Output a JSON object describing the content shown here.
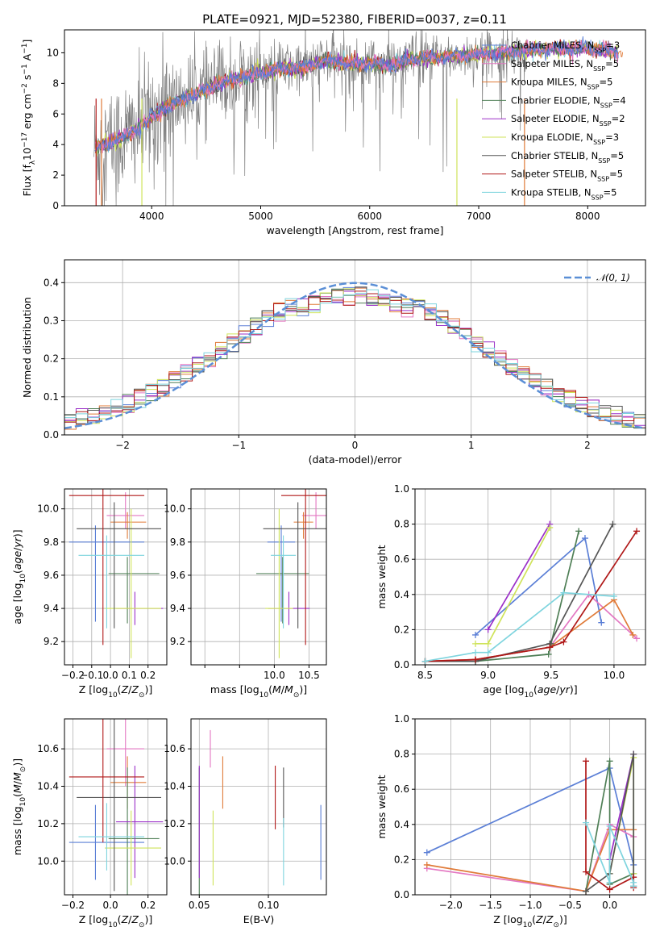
{
  "figure": {
    "title": "PLATE=0921, MJD=52380, FIBERID=0037, z=0.11",
    "colors": {
      "Chabrier MILES": "#5b7fd6",
      "Salpeter MILES": "#e377c2",
      "Kroupa MILES": "#e07b39",
      "Chabrier ELODIE": "#4f7f56",
      "Salpeter ELODIE": "#9b30c8",
      "Kroupa ELODIE": "#cfe35a",
      "Chabrier STELIB": "#555555",
      "Salpeter STELIB": "#b01818",
      "Kroupa STELIB": "#7ed4de",
      "data": "#808080",
      "gaussian": "#5b8fd6"
    }
  },
  "chart_data": [
    {
      "id": "spectrum",
      "type": "line",
      "xlabel": "wavelength [Angstrom, rest frame]",
      "ylabel": "Flux [fλ10⁻¹⁷ erg cm⁻² s⁻¹ A⁻¹]",
      "xlim": [
        3200,
        8530
      ],
      "ylim": [
        0,
        11.5
      ],
      "xticks": [
        4000,
        5000,
        6000,
        7000,
        8000
      ],
      "yticks": [
        0,
        2,
        4,
        6,
        8,
        10
      ],
      "legend_position": "top-right",
      "continuum_x": [
        3500,
        3700,
        3900,
        4100,
        4300,
        4500,
        4700,
        5000,
        5200,
        5400,
        5600,
        5800,
        6000,
        6200,
        6400,
        6600,
        6800,
        7000,
        7200,
        7400,
        7600,
        7800,
        8000,
        8200,
        8300
      ],
      "continuum_y": [
        3.8,
        4.3,
        5.2,
        6.3,
        7.0,
        7.6,
        8.2,
        8.7,
        9.0,
        9.0,
        9.5,
        9.3,
        9.3,
        9.2,
        9.6,
        9.7,
        9.8,
        9.9,
        10.0,
        10.1,
        10.2,
        10.3,
        10.3,
        10.1,
        10.0
      ],
      "series": [
        {
          "name": "Chabrier MILES, N_SSP=3",
          "n": "3"
        },
        {
          "name": "Salpeter MILES, N_SSP=5",
          "n": "5"
        },
        {
          "name": "Kroupa MILES, N_SSP=5",
          "n": "5"
        },
        {
          "name": "Chabrier ELODIE, N_SSP=4",
          "n": "4"
        },
        {
          "name": "Salpeter ELODIE, N_SSP=2",
          "n": "2"
        },
        {
          "name": "Kroupa ELODIE, N_SSP=3",
          "n": "3"
        },
        {
          "name": "Chabrier STELIB, N_SSP=5",
          "n": "5"
        },
        {
          "name": "Salpeter STELIB, N_SSP=5",
          "n": "5"
        },
        {
          "name": "Kroupa STELIB, N_SSP=5",
          "n": "5"
        }
      ]
    },
    {
      "id": "residuals",
      "type": "histogram",
      "xlabel": "(data-model)/error",
      "ylabel": "Normed distribution",
      "xlim": [
        -2.5,
        2.5
      ],
      "ylim": [
        0,
        0.46
      ],
      "xticks": [
        -2,
        -1,
        0,
        1,
        2
      ],
      "yticks": [
        0.0,
        0.1,
        0.2,
        0.3,
        0.4
      ],
      "grid": true,
      "legend": "N(0,1)",
      "bin_width": 0.1
    },
    {
      "id": "age-vs-Z",
      "type": "errorbar",
      "xlabel": "Z [log10(Z/Z⊙)]",
      "ylabel": "age  [log10(age/yr)]",
      "xlim": [
        -0.245,
        0.3
      ],
      "ylim": [
        9.06,
        10.12
      ],
      "xticks": [
        -0.2,
        -0.1,
        0.0,
        0.1,
        0.2
      ],
      "yticks": [
        9.2,
        9.4,
        9.6,
        9.8,
        10.0
      ],
      "grid": true,
      "points": [
        {
          "color": "Chabrier MILES",
          "x": -0.08,
          "xerr": [
            0.14,
            0.26
          ],
          "y": 9.8,
          "yerr": [
            0.48,
            0.1
          ]
        },
        {
          "color": "Salpeter MILES",
          "x": 0.08,
          "xerr": [
            0.1,
            0.1
          ],
          "y": 9.96,
          "yerr": [
            0.08,
            0.14
          ]
        },
        {
          "color": "Kroupa MILES",
          "x": 0.09,
          "xerr": [
            0.09,
            0.1
          ],
          "y": 9.92,
          "yerr": [
            0.1,
            0.06
          ]
        },
        {
          "color": "Chabrier ELODIE",
          "x": 0.09,
          "xerr": [
            0.1,
            0.17
          ],
          "y": 9.61,
          "yerr": [
            0.3,
            0.1
          ]
        },
        {
          "color": "Salpeter ELODIE",
          "x": 0.13,
          "xerr": [
            0.1,
            0.15
          ],
          "y": 9.4,
          "yerr": [
            0.1,
            0.1
          ]
        },
        {
          "color": "Kroupa ELODIE",
          "x": 0.11,
          "xerr": [
            0.14,
            0.16
          ],
          "y": 9.4,
          "yerr": [
            0.3,
            0.6
          ]
        },
        {
          "color": "Chabrier STELIB",
          "x": 0.02,
          "xerr": [
            0.2,
            0.25
          ],
          "y": 9.88,
          "yerr": [
            0.6,
            0.16
          ]
        },
        {
          "color": "Salpeter STELIB",
          "x": -0.04,
          "xerr": [
            0.18,
            0.22
          ],
          "y": 10.08,
          "yerr": [
            0.9,
            0.04
          ]
        },
        {
          "color": "Kroupa STELIB",
          "x": -0.02,
          "xerr": [
            0.15,
            0.2
          ],
          "y": 9.72,
          "yerr": [
            0.44,
            0.12
          ]
        }
      ]
    },
    {
      "id": "age-vs-mass",
      "type": "errorbar",
      "xlabel": "mass [log10(M/M⊙)]",
      "xlim": [
        8.8,
        10.75
      ],
      "ylim": [
        9.06,
        10.12
      ],
      "xticks": [
        9.0,
        9.5,
        10.0,
        10.5
      ],
      "xticklabels": [
        "",
        "",
        "10.0",
        "10.5"
      ],
      "yticks": [
        9.2,
        9.4,
        9.6,
        9.8,
        10.0
      ],
      "grid": true,
      "points": [
        {
          "color": "Chabrier MILES",
          "x": 10.1,
          "xerr": [
            0.2,
            0.2
          ],
          "y": 9.8,
          "yerr": [
            0.48,
            0.1
          ]
        },
        {
          "color": "Salpeter MILES",
          "x": 10.6,
          "xerr": [
            0.2,
            0.2
          ],
          "y": 9.96,
          "yerr": [
            0.08,
            0.14
          ]
        },
        {
          "color": "Kroupa MILES",
          "x": 10.42,
          "xerr": [
            0.14,
            0.14
          ],
          "y": 9.92,
          "yerr": [
            0.1,
            0.06
          ]
        },
        {
          "color": "Chabrier ELODIE",
          "x": 10.12,
          "xerr": [
            0.38,
            0.38
          ],
          "y": 9.61,
          "yerr": [
            0.3,
            0.1
          ]
        },
        {
          "color": "Salpeter ELODIE",
          "x": 10.21,
          "xerr": [
            0.3,
            0.3
          ],
          "y": 9.4,
          "yerr": [
            0.1,
            0.1
          ]
        },
        {
          "color": "Kroupa ELODIE",
          "x": 10.07,
          "xerr": [
            0.2,
            0.2
          ],
          "y": 9.4,
          "yerr": [
            0.3,
            0.6
          ]
        },
        {
          "color": "Chabrier STELIB",
          "x": 10.34,
          "xerr": [
            0.5,
            0.5
          ],
          "y": 9.88,
          "yerr": [
            0.6,
            0.16
          ]
        },
        {
          "color": "Salpeter STELIB",
          "x": 10.45,
          "xerr": [
            0.35,
            0.35
          ],
          "y": 10.08,
          "yerr": [
            0.9,
            0.04
          ]
        },
        {
          "color": "Kroupa STELIB",
          "x": 10.13,
          "xerr": [
            0.18,
            0.18
          ],
          "y": 9.72,
          "yerr": [
            0.44,
            0.12
          ]
        }
      ]
    },
    {
      "id": "weight-vs-age",
      "type": "line",
      "xlabel": "age  [log10(age/yr)]",
      "ylabel": "mass weight",
      "xlim": [
        8.42,
        10.25
      ],
      "ylim": [
        0,
        1
      ],
      "xticks": [
        8.5,
        9.0,
        9.5,
        10.0
      ],
      "yticks": [
        0.0,
        0.2,
        0.4,
        0.6,
        0.8,
        1.0
      ],
      "grid": true,
      "series": [
        {
          "color": "Chabrier MILES",
          "x": [
            8.9,
            9.77,
            9.9
          ],
          "y": [
            0.17,
            0.72,
            0.24
          ]
        },
        {
          "color": "Salpeter MILES",
          "x": [
            8.5,
            8.9,
            9.49,
            9.8,
            10.18
          ],
          "y": [
            0.02,
            0.03,
            0.1,
            0.4,
            0.15
          ]
        },
        {
          "color": "Kroupa MILES",
          "x": [
            8.5,
            8.9,
            9.49,
            10.0,
            10.15
          ],
          "y": [
            0.02,
            0.03,
            0.1,
            0.37,
            0.17
          ]
        },
        {
          "color": "Chabrier ELODIE",
          "x": [
            8.9,
            9.48,
            9.5,
            9.72
          ],
          "y": [
            0.02,
            0.06,
            0.12,
            0.76
          ]
        },
        {
          "color": "Salpeter ELODIE",
          "x": [
            9.0,
            9.49
          ],
          "y": [
            0.2,
            0.8
          ]
        },
        {
          "color": "Kroupa ELODIE",
          "x": [
            8.9,
            9.0,
            9.49
          ],
          "y": [
            0.12,
            0.12,
            0.78
          ]
        },
        {
          "color": "Chabrier STELIB",
          "x": [
            8.5,
            8.9,
            9.49,
            9.99
          ],
          "y": [
            0.02,
            0.02,
            0.12,
            0.8
          ]
        },
        {
          "color": "Salpeter STELIB",
          "x": [
            8.5,
            8.9,
            9.49,
            9.6,
            10.18
          ],
          "y": [
            0.02,
            0.03,
            0.1,
            0.13,
            0.76
          ]
        },
        {
          "color": "Kroupa STELIB",
          "x": [
            8.5,
            8.9,
            9.0,
            9.6,
            10.0
          ],
          "y": [
            0.02,
            0.07,
            0.07,
            0.41,
            0.39
          ]
        }
      ]
    },
    {
      "id": "mass-vs-Z",
      "type": "errorbar",
      "xlabel": "Z [log10(Z/Z⊙)]",
      "ylabel": "mass [log10(M/M⊙)]",
      "xlim": [
        -0.245,
        0.3
      ],
      "ylim": [
        9.82,
        10.76
      ],
      "xticks": [
        -0.2,
        0.0,
        0.2
      ],
      "yticks": [
        10.0,
        10.2,
        10.4,
        10.6
      ],
      "grid": true,
      "points": [
        {
          "color": "Chabrier MILES",
          "x": -0.08,
          "xerr": [
            0.14,
            0.26
          ],
          "y": 10.1,
          "yerr": [
            0.2,
            0.2
          ]
        },
        {
          "color": "Salpeter MILES",
          "x": 0.08,
          "xerr": [
            0.1,
            0.1
          ],
          "y": 10.6,
          "yerr": [
            0.2,
            0.2
          ]
        },
        {
          "color": "Kroupa MILES",
          "x": 0.09,
          "xerr": [
            0.09,
            0.1
          ],
          "y": 10.42,
          "yerr": [
            0.14,
            0.14
          ]
        },
        {
          "color": "Chabrier ELODIE",
          "x": 0.09,
          "xerr": [
            0.1,
            0.17
          ],
          "y": 10.12,
          "yerr": [
            0.38,
            0.38
          ]
        },
        {
          "color": "Salpeter ELODIE",
          "x": 0.13,
          "xerr": [
            0.1,
            0.15
          ],
          "y": 10.21,
          "yerr": [
            0.3,
            0.3
          ]
        },
        {
          "color": "Kroupa ELODIE",
          "x": 0.11,
          "xerr": [
            0.14,
            0.16
          ],
          "y": 10.07,
          "yerr": [
            0.2,
            0.2
          ]
        },
        {
          "color": "Chabrier STELIB",
          "x": 0.02,
          "xerr": [
            0.2,
            0.25
          ],
          "y": 10.34,
          "yerr": [
            0.5,
            0.5
          ]
        },
        {
          "color": "Salpeter STELIB",
          "x": -0.04,
          "xerr": [
            0.18,
            0.22
          ],
          "y": 10.45,
          "yerr": [
            0.35,
            0.35
          ]
        },
        {
          "color": "Kroupa STELIB",
          "x": -0.02,
          "xerr": [
            0.15,
            0.2
          ],
          "y": 10.13,
          "yerr": [
            0.18,
            0.18
          ]
        }
      ]
    },
    {
      "id": "mass-vs-ebv",
      "type": "errorbar",
      "xlabel": "E(B-V)",
      "xlim": [
        0.044,
        0.142
      ],
      "ylim": [
        9.82,
        10.76
      ],
      "xticks": [
        0.05,
        0.1
      ],
      "yticks": [
        10.0,
        10.2,
        10.4,
        10.6
      ],
      "grid": true,
      "points": [
        {
          "color": "Chabrier MILES",
          "x": 0.138,
          "xerr": [
            0,
            0
          ],
          "y": 10.1,
          "yerr": [
            0.2,
            0.2
          ]
        },
        {
          "color": "Salpeter MILES",
          "x": 0.058,
          "xerr": [
            0,
            0
          ],
          "y": 10.6,
          "yerr": [
            0.1,
            0.1
          ]
        },
        {
          "color": "Kroupa MILES",
          "x": 0.067,
          "xerr": [
            0,
            0
          ],
          "y": 10.42,
          "yerr": [
            0.14,
            0.14
          ]
        },
        {
          "color": "Chabrier ELODIE",
          "x": 0.05,
          "xerr": [
            0,
            0
          ],
          "y": 10.12,
          "yerr": [
            0.38,
            0.38
          ]
        },
        {
          "color": "Salpeter ELODIE",
          "x": 0.05,
          "xerr": [
            0,
            0
          ],
          "y": 10.21,
          "yerr": [
            0.3,
            0.3
          ]
        },
        {
          "color": "Kroupa ELODIE",
          "x": 0.06,
          "xerr": [
            0,
            0
          ],
          "y": 10.07,
          "yerr": [
            0.2,
            0.2
          ]
        },
        {
          "color": "Chabrier STELIB",
          "x": 0.111,
          "xerr": [
            0,
            0
          ],
          "y": 10.34,
          "yerr": [
            0.16,
            0.16
          ]
        },
        {
          "color": "Salpeter STELIB",
          "x": 0.105,
          "xerr": [
            0,
            0
          ],
          "y": 10.34,
          "yerr": [
            0.17,
            0.17
          ]
        },
        {
          "color": "Kroupa STELIB",
          "x": 0.111,
          "xerr": [
            0,
            0
          ],
          "y": 10.05,
          "yerr": [
            0.18,
            0.18
          ]
        }
      ]
    },
    {
      "id": "weight-vs-Z",
      "type": "line",
      "xlabel": "Z [log10(Z/Z⊙)]",
      "ylabel": "mass weight",
      "xlim": [
        -2.45,
        0.45
      ],
      "ylim": [
        0,
        1
      ],
      "xticks": [
        -2.0,
        -1.5,
        -1.0,
        -0.5,
        0.0
      ],
      "yticks": [
        0.0,
        0.2,
        0.4,
        0.6,
        0.8,
        1.0
      ],
      "grid": true,
      "series": [
        {
          "color": "Chabrier MILES",
          "x": [
            -2.3,
            0.0,
            0.3
          ],
          "y": [
            0.24,
            0.72,
            0.17
          ]
        },
        {
          "color": "Salpeter MILES",
          "x": [
            -2.3,
            -0.3,
            0.0,
            0.3
          ],
          "y": [
            0.15,
            0.02,
            0.4,
            0.33
          ]
        },
        {
          "color": "Kroupa MILES",
          "x": [
            -2.3,
            -0.3,
            0.0,
            0.3
          ],
          "y": [
            0.17,
            0.02,
            0.37,
            0.37
          ]
        },
        {
          "color": "Chabrier ELODIE",
          "x": [
            -0.3,
            0.0,
            0.0,
            0.3
          ],
          "y": [
            0.02,
            0.76,
            0.06,
            0.12
          ]
        },
        {
          "color": "Salpeter ELODIE",
          "x": [
            0.0,
            0.3
          ],
          "y": [
            0.2,
            0.8
          ]
        },
        {
          "color": "Kroupa ELODIE",
          "x": [
            0.0,
            0.3,
            0.3
          ],
          "y": [
            0.12,
            0.78,
            0.12
          ]
        },
        {
          "color": "Chabrier STELIB",
          "x": [
            -0.3,
            0.0,
            0.3,
            0.3
          ],
          "y": [
            0.02,
            0.12,
            0.8,
            0.05
          ]
        },
        {
          "color": "Salpeter STELIB",
          "x": [
            -0.3,
            -0.3,
            0.0,
            0.3,
            0.3
          ],
          "y": [
            0.76,
            0.13,
            0.03,
            0.1,
            0.04
          ]
        },
        {
          "color": "Kroupa STELIB",
          "x": [
            -0.3,
            0.0,
            0.0,
            0.3,
            0.3
          ],
          "y": [
            0.41,
            0.07,
            0.39,
            0.07,
            0.05
          ]
        }
      ]
    }
  ]
}
